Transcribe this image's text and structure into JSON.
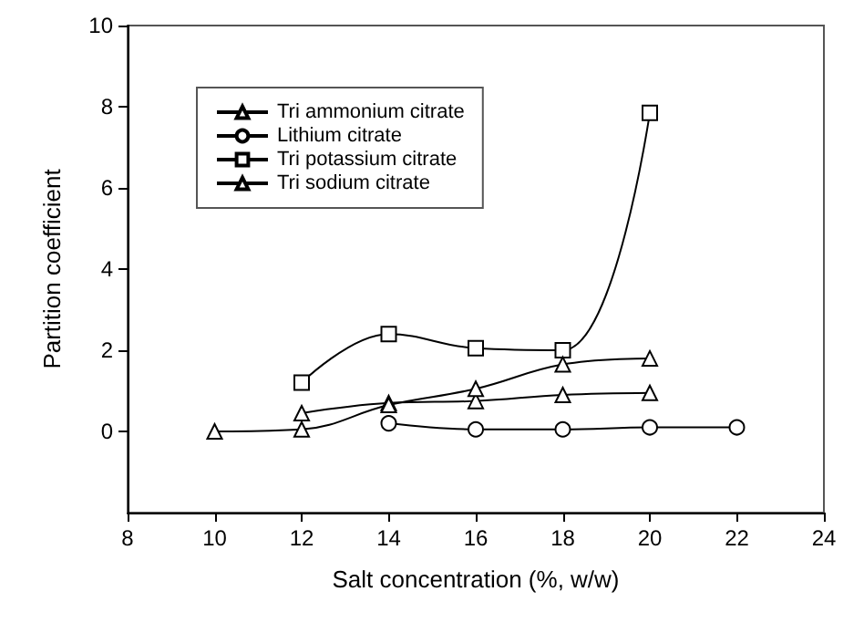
{
  "chart_data": {
    "type": "line",
    "xlabel": "Salt concentration (%, w/w)",
    "ylabel": "Partition coefficient",
    "xlim": [
      8,
      24
    ],
    "xticks": [
      8,
      10,
      12,
      14,
      16,
      18,
      20,
      22,
      24
    ],
    "ylim": [
      -2,
      10
    ],
    "yticks": [
      0,
      2,
      4,
      6,
      8,
      10
    ],
    "grid": false,
    "legend": "top left",
    "series": [
      {
        "name": "Tri ammonium citrate",
        "color": "#000000",
        "marker": "triangle",
        "x": [
          12,
          14,
          16,
          18,
          20
        ],
        "values": [
          0.45,
          0.7,
          0.75,
          0.9,
          0.95
        ]
      },
      {
        "name": "Lithium citrate",
        "color": "#000000",
        "marker": "circle",
        "x": [
          14,
          16,
          18,
          20,
          22
        ],
        "values": [
          0.2,
          0.05,
          0.05,
          0.1,
          0.1
        ]
      },
      {
        "name": "Tri potassium citrate",
        "color": "#000000",
        "marker": "square",
        "x": [
          12,
          14,
          16,
          18,
          20
        ],
        "values": [
          1.2,
          2.4,
          2.05,
          2.0,
          7.85
        ]
      },
      {
        "name": "Tri sodium citrate",
        "color": "#000000",
        "marker": "triangle",
        "x": [
          10,
          12,
          14,
          16,
          18,
          20
        ],
        "values": [
          0.0,
          0.05,
          0.65,
          1.05,
          1.65,
          1.8
        ]
      }
    ]
  }
}
